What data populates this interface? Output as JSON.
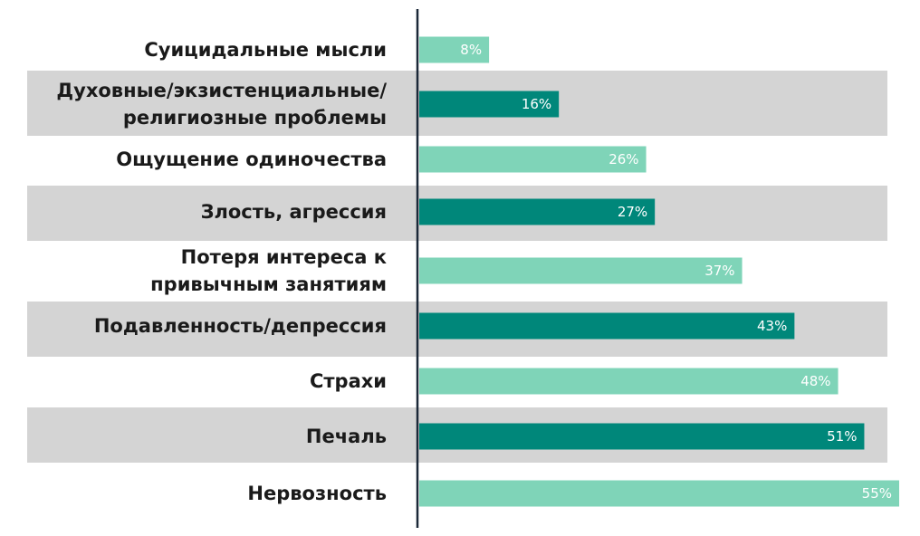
{
  "chart_data": {
    "type": "bar",
    "orientation": "horizontal",
    "categories": [
      "Суицидальные мысли",
      "Духовные/экзистенциальные/ религиозные проблемы",
      "Ощущение одиночества",
      "Злость, агрессия",
      "Потеря интереса к привычным занятиям",
      "Подавленность/депрессия",
      "Страхи",
      "Печаль",
      "Нервозность"
    ],
    "category_lines": [
      [
        "Суицидальные мысли"
      ],
      [
        "Духовные/экзистенциальные/",
        "религиозные проблемы"
      ],
      [
        "Ощущение одиночества"
      ],
      [
        "Злость, агрессия"
      ],
      [
        "Потеря интереса к",
        "привычным занятиям"
      ],
      [
        "Подавленность/депрессия"
      ],
      [
        "Страхи"
      ],
      [
        "Печаль"
      ],
      [
        "Нервозность"
      ]
    ],
    "values": [
      8,
      16,
      26,
      27,
      37,
      43,
      48,
      51,
      55
    ],
    "data_labels": [
      "8%",
      "16%",
      "26%",
      "27%",
      "37%",
      "43%",
      "48%",
      "51%",
      "55%"
    ],
    "unit": "%",
    "xlim": [
      0,
      55
    ],
    "title": "",
    "xlabel": "",
    "ylabel": "",
    "grid": false,
    "legend": "none",
    "colors": {
      "bar_light": "#7fd4b8",
      "bar_dark": "#00877a",
      "band": "#d4d4d4",
      "axis": "#1b2838",
      "label_text": "#1a1a1a",
      "value_text": "#ffffff"
    }
  }
}
